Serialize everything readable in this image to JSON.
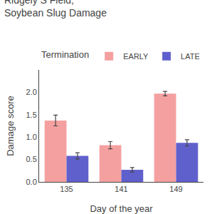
{
  "chart_data": {
    "type": "bar",
    "title": "Ridgely S Field,\nSoybean Slug Damage",
    "xlabel": "Day of the year",
    "ylabel": "Damage score",
    "categories": [
      "135",
      "141",
      "149"
    ],
    "series": [
      {
        "name": "EARLY",
        "color": "#F5A0A0",
        "values": [
          1.37,
          0.82,
          1.97
        ],
        "errors": [
          0.12,
          0.08,
          0.05
        ]
      },
      {
        "name": "LATE",
        "color": "#6060CC",
        "values": [
          0.58,
          0.27,
          0.87
        ],
        "errors": [
          0.07,
          0.05,
          0.07
        ]
      }
    ],
    "legend_title": "Termination",
    "legend": "upper right",
    "ylim": [
      0.0,
      2.5
    ],
    "yticks": [
      {
        "value": 0,
        "label": "0.0"
      },
      0.5,
      {
        "value": 1,
        "label": "1.0"
      },
      1.5,
      {
        "value": 2,
        "label": "2.0"
      }
    ],
    "grid": false
  }
}
